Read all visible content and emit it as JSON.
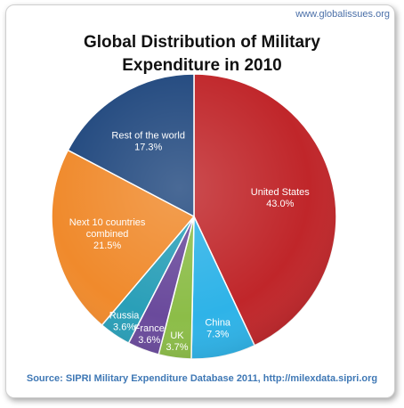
{
  "site_url": "www.globalissues.org",
  "chart_data": {
    "type": "pie",
    "title_line1": "Global Distribution of Military",
    "title_line2": "Expenditure in 2010",
    "source": "Source: SIPRI Military Expenditure Database 2011, http://milexdata.sipri.org",
    "slices": [
      {
        "label": [
          "United States"
        ],
        "value": 43.0,
        "value_text": "43.0%",
        "color": "#c0262a",
        "label_color": "#ffffff"
      },
      {
        "label": [
          "China"
        ],
        "value": 7.3,
        "value_text": "7.3%",
        "color": "#2eb3e8",
        "label_color": "#ffffff"
      },
      {
        "label": [
          "UK"
        ],
        "value": 3.7,
        "value_text": "3.7%",
        "color": "#8cbd48",
        "label_color": "#ffffff"
      },
      {
        "label": [
          "France"
        ],
        "value": 3.6,
        "value_text": "3.6%",
        "color": "#6a4a9c",
        "label_color": "#ffffff"
      },
      {
        "label": [
          "Russia"
        ],
        "value": 3.6,
        "value_text": "3.6%",
        "color": "#2a9fb8",
        "label_color": "#ffffff"
      },
      {
        "label": [
          "Next 10 countries",
          "combined"
        ],
        "value": 21.5,
        "value_text": "21.5%",
        "color": "#f08a2c",
        "label_color": "#ffffff"
      },
      {
        "label": [
          "Rest of the world"
        ],
        "value": 17.3,
        "value_text": "17.3%",
        "color": "#22497f",
        "label_color": "#ffffff"
      }
    ]
  }
}
